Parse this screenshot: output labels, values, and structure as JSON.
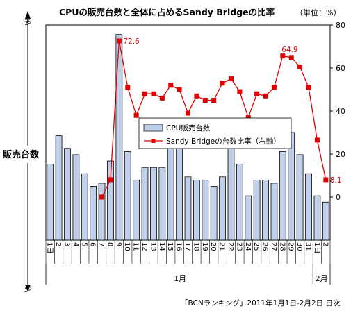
{
  "chart_data": {
    "type": "bar",
    "title": "CPUの販売台数と全体に占めるSandy Bridgeの比率",
    "unit_label": "（単位：%）",
    "y_left_label": "販売台数",
    "y_left_top": "多",
    "y_left_bottom": "少",
    "right_ylim": [
      -20,
      80
    ],
    "right_ticks": [
      "80",
      "60",
      "40",
      "20",
      "0"
    ],
    "categories": [
      "1日",
      "2",
      "3",
      "4",
      "5",
      "6",
      "7",
      "8",
      "9",
      "10",
      "11",
      "12",
      "13",
      "14",
      "15",
      "16",
      "17",
      "18",
      "19",
      "20",
      "21",
      "22",
      "23",
      "24",
      "25",
      "26",
      "27",
      "28",
      "29",
      "30",
      "31",
      "1日",
      "2"
    ],
    "month_labels": [
      "1月",
      "2月"
    ],
    "legend_placement": "center-right",
    "grid": false,
    "series": [
      {
        "name": "CPU販売台数",
        "kind": "bar",
        "axis": "none",
        "color": "#c0cfea",
        "values": [
          24,
          33,
          29,
          27,
          21,
          17,
          18,
          25,
          65,
          28,
          19,
          23,
          23,
          23,
          32,
          29,
          20,
          19,
          19,
          17,
          20,
          30,
          24,
          14,
          19,
          19,
          18,
          28,
          34,
          27,
          21,
          14,
          12
        ]
      },
      {
        "name": "Sandy Bridgeの台数比率（右軸）",
        "kind": "line",
        "axis": "right",
        "color": "#e00000",
        "values": [
          null,
          null,
          null,
          null,
          null,
          null,
          0,
          8.1,
          72.6,
          51,
          38,
          48,
          48,
          46,
          52,
          50,
          39,
          47,
          45,
          45,
          53,
          55,
          49,
          37,
          48,
          47,
          51,
          65.6,
          64.9,
          60.5,
          51,
          26.5,
          8.1
        ],
        "labeled_points": [
          {
            "x": "9",
            "value": 72.6
          },
          {
            "x": "29",
            "value": 64.9
          },
          {
            "x": "2",
            "value": 8.1
          }
        ]
      }
    ],
    "source": "「BCNランキング」2011年1月1日-2月2日 日次"
  }
}
